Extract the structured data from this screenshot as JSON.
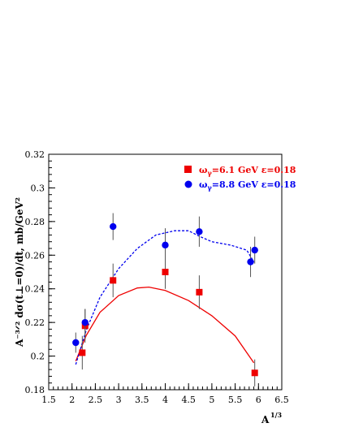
{
  "chart_data": {
    "type": "scatter",
    "xlabel": "A",
    "xlabel_sup": "1/3",
    "ylabel": "A⁻³ᐟ² dσ(t⊥=0)/dt, mb/GeV²",
    "xlim": [
      1.5,
      6.5
    ],
    "ylim": [
      0.18,
      0.32
    ],
    "x_ticks": [
      "1.5",
      "2",
      "2.5",
      "3",
      "3.5",
      "4",
      "4.5",
      "5",
      "5.5",
      "6",
      "6.5"
    ],
    "y_ticks": [
      "0.18",
      "0.2",
      "0.22",
      "0.24",
      "0.26",
      "0.28",
      "0.3",
      "0.32"
    ],
    "grid": false,
    "legend_position": "top-right",
    "series": [
      {
        "name": "ωγ=6.1 GeV  ε=0.18",
        "name_parts": {
          "pre": "ω",
          "sub": "γ",
          "post": "=6.1 GeV  ε=0.18"
        },
        "color": "#ee0000",
        "marker": "square",
        "x": [
          2.22,
          2.28,
          2.88,
          4.0,
          4.73,
          5.92
        ],
        "y": [
          0.202,
          0.218,
          0.245,
          0.25,
          0.238,
          0.19
        ],
        "err": [
          0.01,
          0.01,
          0.01,
          0.01,
          0.01,
          0.008
        ],
        "curve": {
          "style": "solid",
          "x": [
            2.08,
            2.3,
            2.6,
            3.0,
            3.4,
            3.65,
            4.0,
            4.5,
            5.0,
            5.5,
            5.9
          ],
          "y": [
            0.197,
            0.212,
            0.226,
            0.236,
            0.2405,
            0.241,
            0.239,
            0.233,
            0.224,
            0.212,
            0.196
          ]
        }
      },
      {
        "name": "ωγ=8.8 GeV  ε=0.18",
        "name_parts": {
          "pre": "ω",
          "sub": "γ",
          "post": "=8.8 GeV  ε=0.18"
        },
        "color": "#0000ee",
        "marker": "circle",
        "x": [
          2.08,
          2.28,
          2.88,
          4.0,
          4.73,
          5.83,
          5.92
        ],
        "y": [
          0.208,
          0.22,
          0.277,
          0.266,
          0.274,
          0.256,
          0.263
        ],
        "err": [
          0.006,
          0.008,
          0.008,
          0.01,
          0.009,
          0.009,
          0.008
        ],
        "curve": {
          "style": "dashed",
          "x": [
            2.08,
            2.3,
            2.6,
            3.0,
            3.4,
            3.8,
            4.2,
            4.5,
            4.75,
            5.0,
            5.4,
            5.75,
            5.9
          ],
          "y": [
            0.195,
            0.215,
            0.235,
            0.252,
            0.264,
            0.272,
            0.2745,
            0.2745,
            0.271,
            0.268,
            0.266,
            0.263,
            0.256
          ]
        }
      }
    ]
  }
}
